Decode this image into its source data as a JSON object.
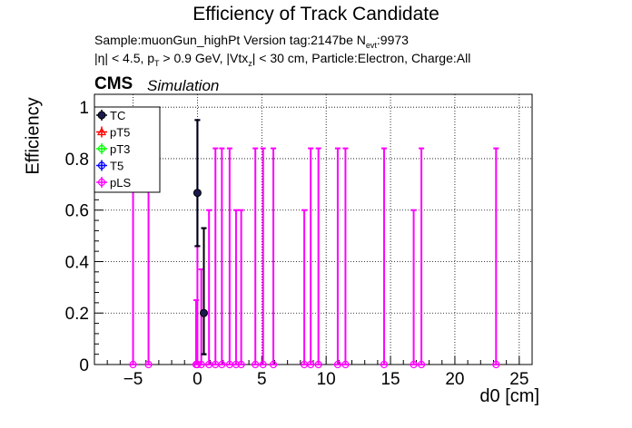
{
  "title": "Efficiency of Track Candidate",
  "subtitle1": "Sample:muonGun_highPt   Version tag:2147be  N",
  "subtitle1_sub": "evt",
  "subtitle1_tail": ":9973",
  "subtitle2_a": "|η| < 4.5, p",
  "subtitle2_sub": "T",
  "subtitle2_b": " > 0.9 GeV, |Vtx",
  "subtitle2_sub2": "z",
  "subtitle2_c": "| < 30 cm, Particle:Electron, Charge:All",
  "cms_label": "CMS",
  "sim_label": "Simulation",
  "colors": {
    "TC": "#000000",
    "pT5": "#ff0000",
    "pT3": "#00ff00",
    "T5": "#0000ff",
    "pLS": "#ff00ff",
    "TC_fill": "#1a1a4d"
  },
  "chart_data": {
    "type": "scatter",
    "xlabel": "d0 [cm]",
    "ylabel": "Efficiency",
    "xlim": [
      -8,
      26
    ],
    "ylim": [
      0,
      1.05
    ],
    "x_ticks": [
      -5,
      0,
      5,
      10,
      15,
      20,
      25
    ],
    "x_tick_labels": [
      "−5",
      "0",
      "5",
      "10",
      "15",
      "20",
      "25"
    ],
    "y_ticks": [
      0,
      0.2,
      0.4,
      0.6,
      0.8,
      1
    ],
    "y_tick_labels": [
      "0",
      "0.2",
      "0.4",
      "0.6",
      "0.8",
      "1"
    ],
    "grid": true,
    "legend_position": "top-left",
    "series": [
      {
        "name": "TC",
        "marker": "circle-filled",
        "points": [
          {
            "x": 0.0,
            "y": 0.667,
            "lo": 0.46,
            "hi": 0.95
          },
          {
            "x": 0.5,
            "y": 0.2,
            "lo": 0.04,
            "hi": 0.53
          }
        ]
      },
      {
        "name": "pT5",
        "marker": "triangle-open",
        "points": []
      },
      {
        "name": "pT3",
        "marker": "circle-open",
        "points": []
      },
      {
        "name": "T5",
        "marker": "circle-open",
        "points": [
          {
            "x": 0.0,
            "y": 0.667,
            "lo": 0.46,
            "hi": 0.95
          },
          {
            "x": 0.5,
            "y": 0.2,
            "lo": 0.04,
            "hi": 0.53
          }
        ]
      },
      {
        "name": "pLS",
        "marker": "circle-open",
        "points": [
          {
            "x": -5.0,
            "y": 0.0,
            "lo": 0.0,
            "hi": 0.84
          },
          {
            "x": -3.8,
            "y": 0.0,
            "lo": 0.0,
            "hi": 0.84
          },
          {
            "x": -0.1,
            "y": 0.0,
            "lo": 0.0,
            "hi": 0.25
          },
          {
            "x": 0.0,
            "y": 0.0,
            "lo": 0.0,
            "hi": 0.46
          },
          {
            "x": 0.3,
            "y": 0.0,
            "lo": 0.0,
            "hi": 0.37
          },
          {
            "x": 0.5,
            "y": 0.2,
            "lo": 0.04,
            "hi": 0.53
          },
          {
            "x": 0.9,
            "y": 0.0,
            "lo": 0.0,
            "hi": 0.6
          },
          {
            "x": 1.4,
            "y": 0.0,
            "lo": 0.0,
            "hi": 0.84
          },
          {
            "x": 1.9,
            "y": 0.0,
            "lo": 0.0,
            "hi": 0.84
          },
          {
            "x": 2.5,
            "y": 0.0,
            "lo": 0.0,
            "hi": 0.84
          },
          {
            "x": 3.0,
            "y": 0.0,
            "lo": 0.0,
            "hi": 0.6
          },
          {
            "x": 3.4,
            "y": 0.0,
            "lo": 0.0,
            "hi": 0.6
          },
          {
            "x": 4.5,
            "y": 0.0,
            "lo": 0.0,
            "hi": 0.84
          },
          {
            "x": 5.1,
            "y": 0.0,
            "lo": 0.0,
            "hi": 0.84
          },
          {
            "x": 5.9,
            "y": 0.0,
            "lo": 0.0,
            "hi": 0.84
          },
          {
            "x": 8.3,
            "y": 0.0,
            "lo": 0.0,
            "hi": 0.6
          },
          {
            "x": 8.8,
            "y": 0.0,
            "lo": 0.0,
            "hi": 0.84
          },
          {
            "x": 9.4,
            "y": 0.0,
            "lo": 0.0,
            "hi": 0.84
          },
          {
            "x": 10.9,
            "y": 0.0,
            "lo": 0.0,
            "hi": 0.84
          },
          {
            "x": 11.5,
            "y": 0.0,
            "lo": 0.0,
            "hi": 0.84
          },
          {
            "x": 14.5,
            "y": 0.0,
            "lo": 0.0,
            "hi": 0.84
          },
          {
            "x": 16.8,
            "y": 0.0,
            "lo": 0.0,
            "hi": 0.6
          },
          {
            "x": 17.4,
            "y": 0.0,
            "lo": 0.0,
            "hi": 0.84
          },
          {
            "x": 23.2,
            "y": 0.0,
            "lo": 0.0,
            "hi": 0.84
          }
        ]
      }
    ]
  }
}
